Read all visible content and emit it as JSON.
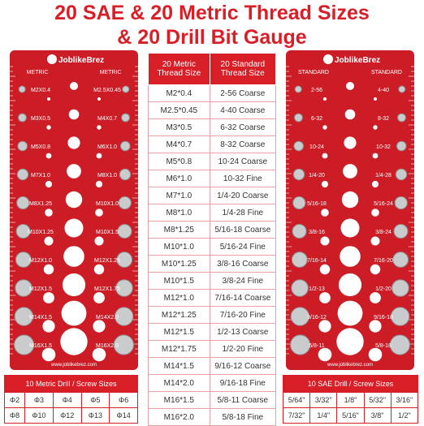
{
  "header": {
    "line1": "20 SAE & 20 Metric Thread Sizes",
    "line2": "& 20 Drill Bit Gauge"
  },
  "left_gauge": {
    "brand": "JoblikeBrez",
    "label_left": "METRIC",
    "label_right": "METRIC",
    "website": "www.joblikebrez.com",
    "rows": [
      [
        "M2X0.4",
        "M2.5X0.45"
      ],
      [
        "M3X0.5",
        "M4X0.7"
      ],
      [
        "M5X0.8",
        "M6X1.0"
      ],
      [
        "M7X1.0",
        "M8X1.0"
      ],
      [
        "M8X1.25",
        "M10X1.0"
      ],
      [
        "M10X1.25",
        "M10X1.5"
      ],
      [
        "M12X1.0",
        "M12X1.25"
      ],
      [
        "M12X1.5",
        "M12X1.75"
      ],
      [
        "M14X1.5",
        "M14X2.0"
      ],
      [
        "M16X1.5",
        "M16X2.0"
      ]
    ]
  },
  "right_gauge": {
    "brand": "JoblikeBrez",
    "label_left": "STANDARD",
    "label_right": "STANDARD",
    "website": "www.joblikebrez.com",
    "rows": [
      [
        "2-56",
        "4-40"
      ],
      [
        "6-32",
        "8-32"
      ],
      [
        "10-24",
        "10-32"
      ],
      [
        "1/4-20",
        "1/4-28"
      ],
      [
        "5/16-18",
        "5/16-24"
      ],
      [
        "3/8-16",
        "3/8-24"
      ],
      [
        "7/16-14",
        "7/16-20"
      ],
      [
        "1/2-13",
        "1/2-20"
      ],
      [
        "9/16-12",
        "9/16-18"
      ],
      [
        "5/8-11",
        "5/8-18"
      ]
    ]
  },
  "table": {
    "header": [
      "20 Metric Thread Size",
      "20 Standard Thread Size"
    ],
    "rows": [
      [
        "M2*0.4",
        "2-56 Coarse"
      ],
      [
        "M2.5*0.45",
        "4-40 Coarse"
      ],
      [
        "M3*0.5",
        "6-32 Coarse"
      ],
      [
        "M4*0.7",
        "8-32 Coarse"
      ],
      [
        "M5*0.8",
        "10-24 Coarse"
      ],
      [
        "M6*1.0",
        "10-32 Fine"
      ],
      [
        "M7*1.0",
        "1/4-20 Coarse"
      ],
      [
        "M8*1.0",
        "1/4-28 Fine"
      ],
      [
        "M8*1.25",
        "5/16-18 Coarse"
      ],
      [
        "M10*1.0",
        "5/16-24 Fine"
      ],
      [
        "M10*1.25",
        "3/8-16 Coarse"
      ],
      [
        "M10*1.5",
        "3/8-24 Fine"
      ],
      [
        "M12*1.0",
        "7/16-14 Coarse"
      ],
      [
        "M12*1.25",
        "7/16-20 Fine"
      ],
      [
        "M12*1.5",
        "1/2-13 Coarse"
      ],
      [
        "M12*1.75",
        "1/2-20 Fine"
      ],
      [
        "M14*1.5",
        "9/16-12 Coarse"
      ],
      [
        "M14*2.0",
        "9/16-18 Fine"
      ],
      [
        "M16*1.5",
        "5/8-11 Coarse"
      ],
      [
        "M16*2.0",
        "5/8-18 Fine"
      ]
    ]
  },
  "metric_drill": {
    "title": "10 Metric Drill / Screw Sizes",
    "rows": [
      [
        "Φ2",
        "Φ3",
        "Φ4",
        "Φ5",
        "Φ6"
      ],
      [
        "Φ8",
        "Φ10",
        "Φ12",
        "Φ13",
        "Φ14"
      ]
    ]
  },
  "sae_drill": {
    "title": "10 SAE Drill / Screw Sizes",
    "rows": [
      [
        "5/64\"",
        "3/32\"",
        "1/8\"",
        "5/32\"",
        "3/16\""
      ],
      [
        "7/32\"",
        "1/4\"",
        "5/16\"",
        "3/8\"",
        "1/2\""
      ]
    ]
  }
}
